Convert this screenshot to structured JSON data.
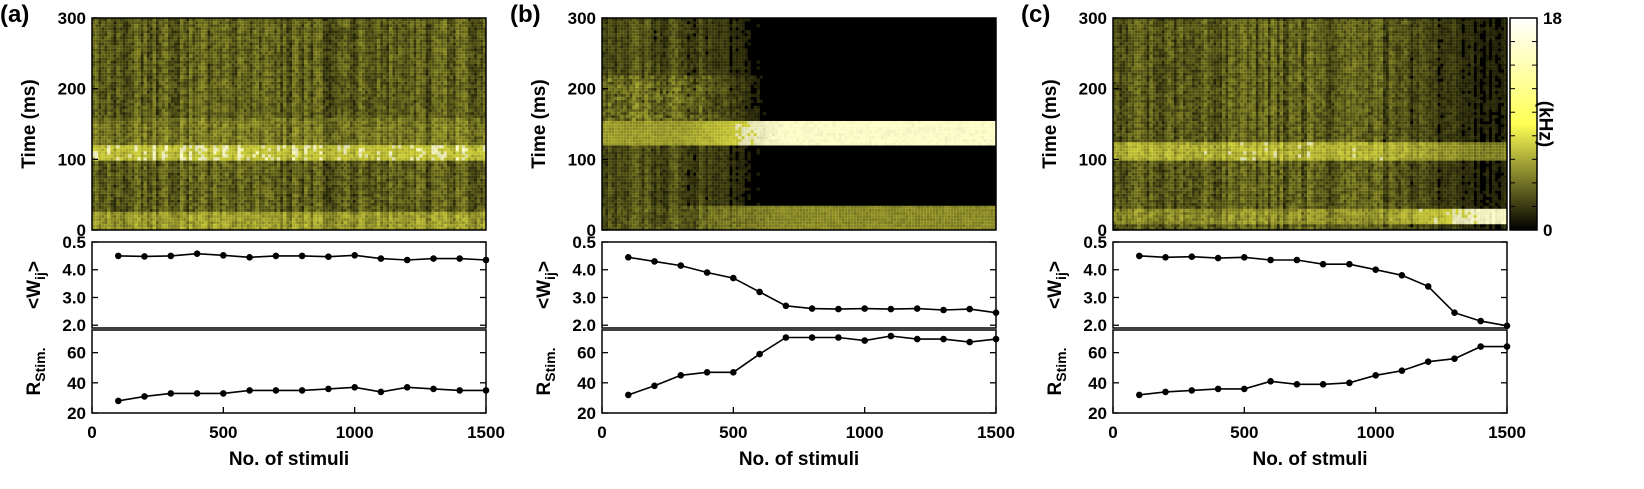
{
  "figure": {
    "colorbar": {
      "label": "(kHz)",
      "min": 0,
      "max": 18,
      "tick_labels": [
        "0",
        "18"
      ],
      "colors": [
        "#000000",
        "#ffff55",
        "#ffffff"
      ]
    }
  },
  "chart_data": [
    {
      "panel": "(a)",
      "heatmap": {
        "type": "heatmap",
        "ylabel": "Time (ms)",
        "xlim": [
          0,
          1500
        ],
        "ylim": [
          0,
          300
        ],
        "y_ticks": [
          "0",
          "100",
          "200",
          "300"
        ],
        "pattern": "diffuse activity at all times with a bright band near 100-110 ms and near 0-20 ms",
        "color": "#e8e840"
      },
      "weights": {
        "type": "line",
        "ylabel": "<W",
        "ylabel_sub": "ij",
        "ylabel_suffix": ">",
        "ylim": [
          1.9,
          5.0
        ],
        "y_ticks": [
          "2.0",
          "3.0",
          "4.0",
          "0.5"
        ],
        "x": [
          100,
          200,
          300,
          400,
          500,
          600,
          700,
          800,
          900,
          1000,
          1100,
          1200,
          1300,
          1400,
          1500
        ],
        "y": [
          4.5,
          4.48,
          4.5,
          4.58,
          4.52,
          4.45,
          4.5,
          4.5,
          4.47,
          4.52,
          4.4,
          4.35,
          4.4,
          4.4,
          4.35
        ]
      },
      "rate": {
        "type": "line",
        "ylabel": "R",
        "ylabel_sub": "Stim.",
        "xlabel": "No. of stimuli",
        "xlim": [
          0,
          1500
        ],
        "ylim": [
          20,
          75
        ],
        "y_ticks": [
          "20",
          "40",
          "60"
        ],
        "x_ticks": [
          "0",
          "500",
          "1000",
          "1500"
        ],
        "x": [
          100,
          200,
          300,
          400,
          500,
          600,
          700,
          800,
          900,
          1000,
          1100,
          1200,
          1300,
          1400,
          1500
        ],
        "y": [
          28,
          31,
          33,
          33,
          33,
          35,
          35,
          35,
          36,
          37,
          34,
          37,
          36,
          35,
          35
        ]
      }
    },
    {
      "panel": "(b)",
      "heatmap": {
        "type": "heatmap",
        "ylabel": "Time (ms)",
        "xlim": [
          0,
          1500
        ],
        "ylim": [
          0,
          300
        ],
        "y_ticks": [
          "0",
          "100",
          "200",
          "300"
        ],
        "pattern": "activity concentrates into a bright band at 125-150 ms and a band at 0-35 ms after ~600 stimuli",
        "color": "#e8e840"
      },
      "weights": {
        "type": "line",
        "ylabel": "<W",
        "ylabel_sub": "ij",
        "ylabel_suffix": ">",
        "ylim": [
          1.9,
          5.0
        ],
        "y_ticks": [
          "2.0",
          "3.0",
          "4.0",
          "0.5"
        ],
        "x": [
          100,
          200,
          300,
          400,
          500,
          600,
          700,
          800,
          900,
          1000,
          1100,
          1200,
          1300,
          1400,
          1500
        ],
        "y": [
          4.45,
          4.3,
          4.15,
          3.9,
          3.7,
          3.2,
          2.7,
          2.6,
          2.58,
          2.6,
          2.58,
          2.6,
          2.55,
          2.58,
          2.45
        ]
      },
      "rate": {
        "type": "line",
        "ylabel": "R",
        "ylabel_sub": "Stim.",
        "xlabel": "No. of stimuli",
        "xlim": [
          0,
          1500
        ],
        "ylim": [
          20,
          75
        ],
        "y_ticks": [
          "20",
          "40",
          "60"
        ],
        "x_ticks": [
          "0",
          "500",
          "1000",
          "1500"
        ],
        "x": [
          100,
          200,
          300,
          400,
          500,
          600,
          700,
          800,
          900,
          1000,
          1100,
          1200,
          1300,
          1400,
          1500
        ],
        "y": [
          32,
          38,
          45,
          47,
          47,
          59,
          70,
          70,
          70,
          68,
          71,
          69,
          69,
          67,
          69
        ]
      }
    },
    {
      "panel": "(c)",
      "heatmap": {
        "type": "heatmap",
        "ylabel": "Time (ms)",
        "xlim": [
          0,
          1500
        ],
        "ylim": [
          0,
          300
        ],
        "y_ticks": [
          "0",
          "100",
          "200",
          "300"
        ],
        "pattern": "diffuse activity with band near 100-130 ms; bright band at 10-30 ms emerges after ~1200 stimuli",
        "color": "#e8e840"
      },
      "weights": {
        "type": "line",
        "ylabel": "<W",
        "ylabel_sub": "ij",
        "ylabel_suffix": ">",
        "ylim": [
          1.9,
          5.0
        ],
        "y_ticks": [
          "2.0",
          "3.0",
          "4.0",
          "0.5"
        ],
        "x": [
          100,
          200,
          300,
          400,
          500,
          600,
          700,
          800,
          900,
          1000,
          1100,
          1200,
          1300,
          1400,
          1500
        ],
        "y": [
          4.5,
          4.45,
          4.47,
          4.42,
          4.45,
          4.35,
          4.35,
          4.2,
          4.2,
          4.0,
          3.8,
          3.4,
          2.45,
          2.15,
          1.98
        ]
      },
      "rate": {
        "type": "line",
        "ylabel": "R",
        "ylabel_sub": "Stim.",
        "xlabel": "No. of stmuli",
        "xlim": [
          0,
          1500
        ],
        "ylim": [
          20,
          75
        ],
        "y_ticks": [
          "20",
          "40",
          "60"
        ],
        "x_ticks": [
          "0",
          "500",
          "1000",
          "1500"
        ],
        "x": [
          100,
          200,
          300,
          400,
          500,
          600,
          700,
          800,
          900,
          1000,
          1100,
          1200,
          1300,
          1400,
          1500
        ],
        "y": [
          32,
          34,
          35,
          36,
          36,
          41,
          39,
          39,
          40,
          45,
          48,
          54,
          56,
          64,
          64
        ]
      }
    }
  ]
}
